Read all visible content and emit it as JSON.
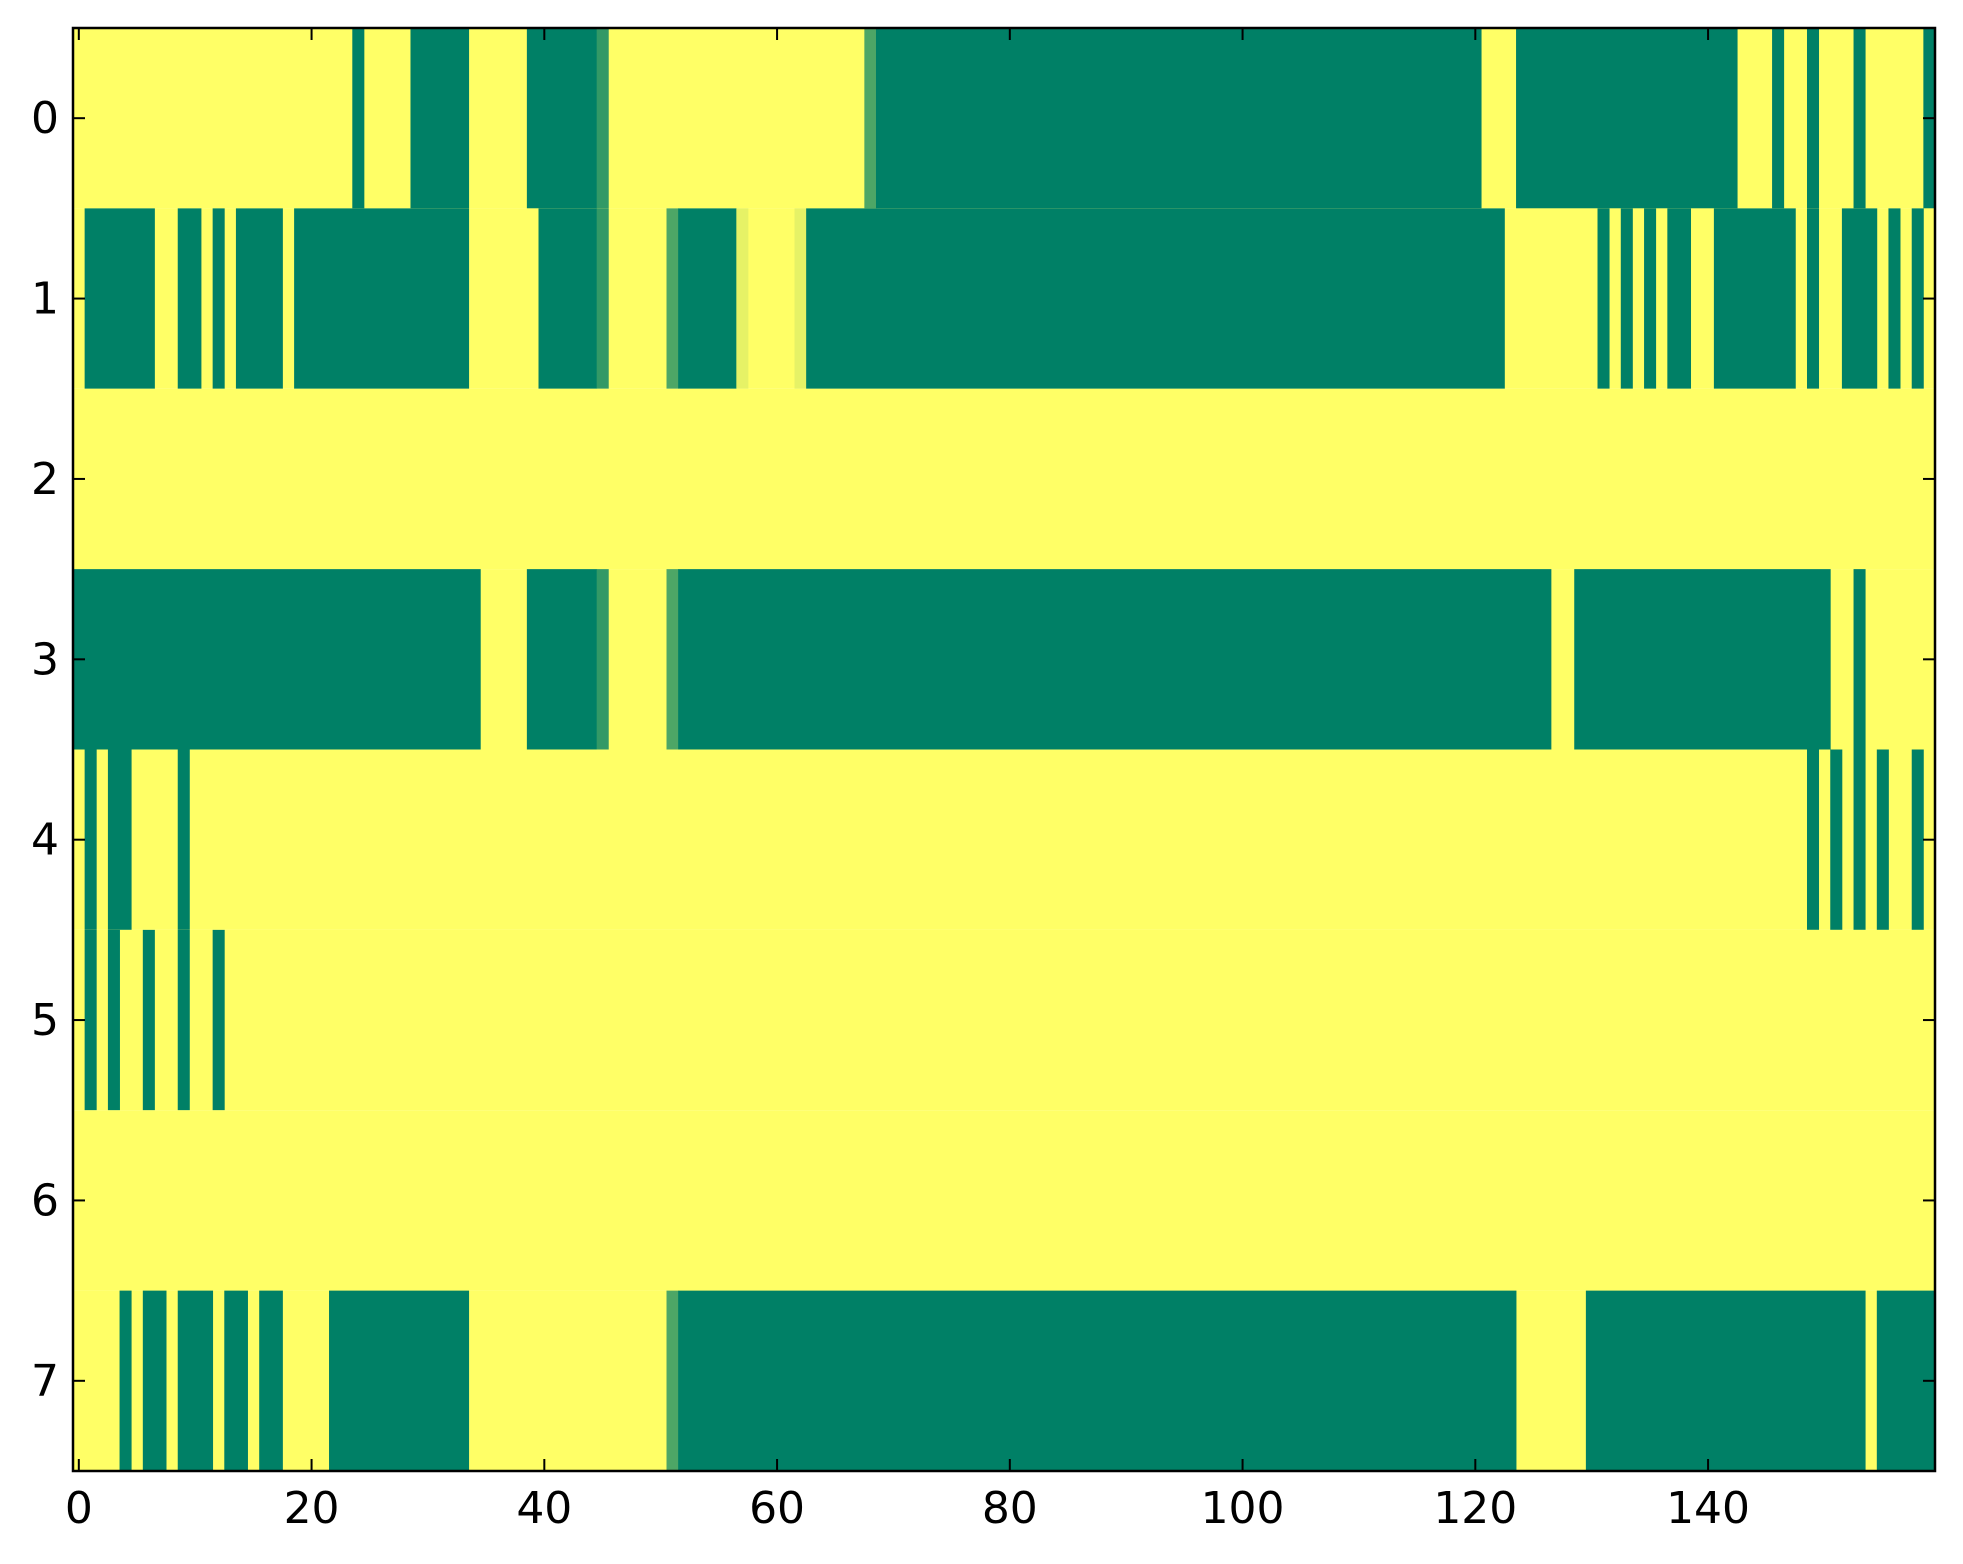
{
  "chart_data": {
    "type": "heatmap",
    "title": "",
    "xlabel": "",
    "ylabel": "",
    "xlim": [
      -0.5,
      159.5
    ],
    "ylim": [
      7.5,
      -0.5
    ],
    "x_ticks": [
      0,
      20,
      40,
      60,
      80,
      100,
      120,
      140
    ],
    "y_ticks": [
      0,
      1,
      2,
      3,
      4,
      5,
      6,
      7
    ],
    "x_tick_labels": [
      "0",
      "20",
      "40",
      "60",
      "80",
      "100",
      "120",
      "140"
    ],
    "y_tick_labels": [
      "0",
      "1",
      "2",
      "3",
      "4",
      "5",
      "6",
      "7"
    ],
    "columns": 160,
    "colorbar": false,
    "colormap": "summer (low = green, high = yellow)",
    "colors": {
      "low": "#008066",
      "high": "#ffff66",
      "mid_dark": "#66b266",
      "mid_light": "#e6f266"
    },
    "rows": [
      {
        "row": 0,
        "default": 1,
        "segments": [
          [
            24,
            24,
            0
          ],
          [
            29,
            33,
            0
          ],
          [
            39,
            44,
            0
          ],
          [
            45,
            45,
            0.2
          ],
          [
            68,
            68,
            0.3
          ],
          [
            69,
            120,
            0
          ],
          [
            124,
            142,
            0
          ],
          [
            146,
            146,
            0
          ],
          [
            149,
            149,
            0
          ],
          [
            153,
            153,
            0
          ],
          [
            159,
            159,
            0
          ]
        ]
      },
      {
        "row": 1,
        "default": 1,
        "segments": [
          [
            1,
            6,
            0
          ],
          [
            9,
            10,
            0
          ],
          [
            12,
            12,
            0
          ],
          [
            14,
            17,
            0
          ],
          [
            19,
            33,
            0
          ],
          [
            40,
            44,
            0
          ],
          [
            45,
            45,
            0.2
          ],
          [
            51,
            51,
            0.3
          ],
          [
            52,
            56,
            0
          ],
          [
            57,
            57,
            0.9
          ],
          [
            62,
            62,
            0.9
          ],
          [
            63,
            122,
            0
          ],
          [
            131,
            131,
            0
          ],
          [
            133,
            133,
            0
          ],
          [
            135,
            135,
            0
          ],
          [
            137,
            138,
            0
          ],
          [
            141,
            147,
            0
          ],
          [
            149,
            149,
            0
          ],
          [
            152,
            154,
            0
          ],
          [
            156,
            156,
            0
          ],
          [
            158,
            158,
            0
          ]
        ]
      },
      {
        "row": 2,
        "default": 1,
        "segments": []
      },
      {
        "row": 3,
        "default": 1,
        "segments": [
          [
            0,
            34,
            0
          ],
          [
            39,
            44,
            0
          ],
          [
            45,
            45,
            0.2
          ],
          [
            51,
            51,
            0.3
          ],
          [
            52,
            126,
            0
          ],
          [
            129,
            150,
            0
          ],
          [
            153,
            153,
            0
          ]
        ]
      },
      {
        "row": 4,
        "default": 1,
        "segments": [
          [
            1,
            1,
            0
          ],
          [
            3,
            4,
            0
          ],
          [
            9,
            9,
            0
          ],
          [
            149,
            149,
            0
          ],
          [
            151,
            151,
            0
          ],
          [
            153,
            153,
            0
          ],
          [
            155,
            155,
            0
          ],
          [
            158,
            158,
            0
          ]
        ]
      },
      {
        "row": 5,
        "default": 1,
        "segments": [
          [
            1,
            1,
            0
          ],
          [
            3,
            3,
            0
          ],
          [
            6,
            6,
            0
          ],
          [
            9,
            9,
            0
          ],
          [
            12,
            12,
            0
          ]
        ]
      },
      {
        "row": 6,
        "default": 1,
        "segments": []
      },
      {
        "row": 7,
        "default": 1,
        "segments": [
          [
            4,
            4,
            0
          ],
          [
            6,
            7,
            0
          ],
          [
            9,
            11,
            0
          ],
          [
            13,
            14,
            0
          ],
          [
            16,
            17,
            0
          ],
          [
            22,
            33,
            0
          ],
          [
            51,
            51,
            0.3
          ],
          [
            52,
            123,
            0
          ],
          [
            130,
            153,
            0
          ],
          [
            155,
            159,
            0
          ]
        ]
      }
    ]
  }
}
